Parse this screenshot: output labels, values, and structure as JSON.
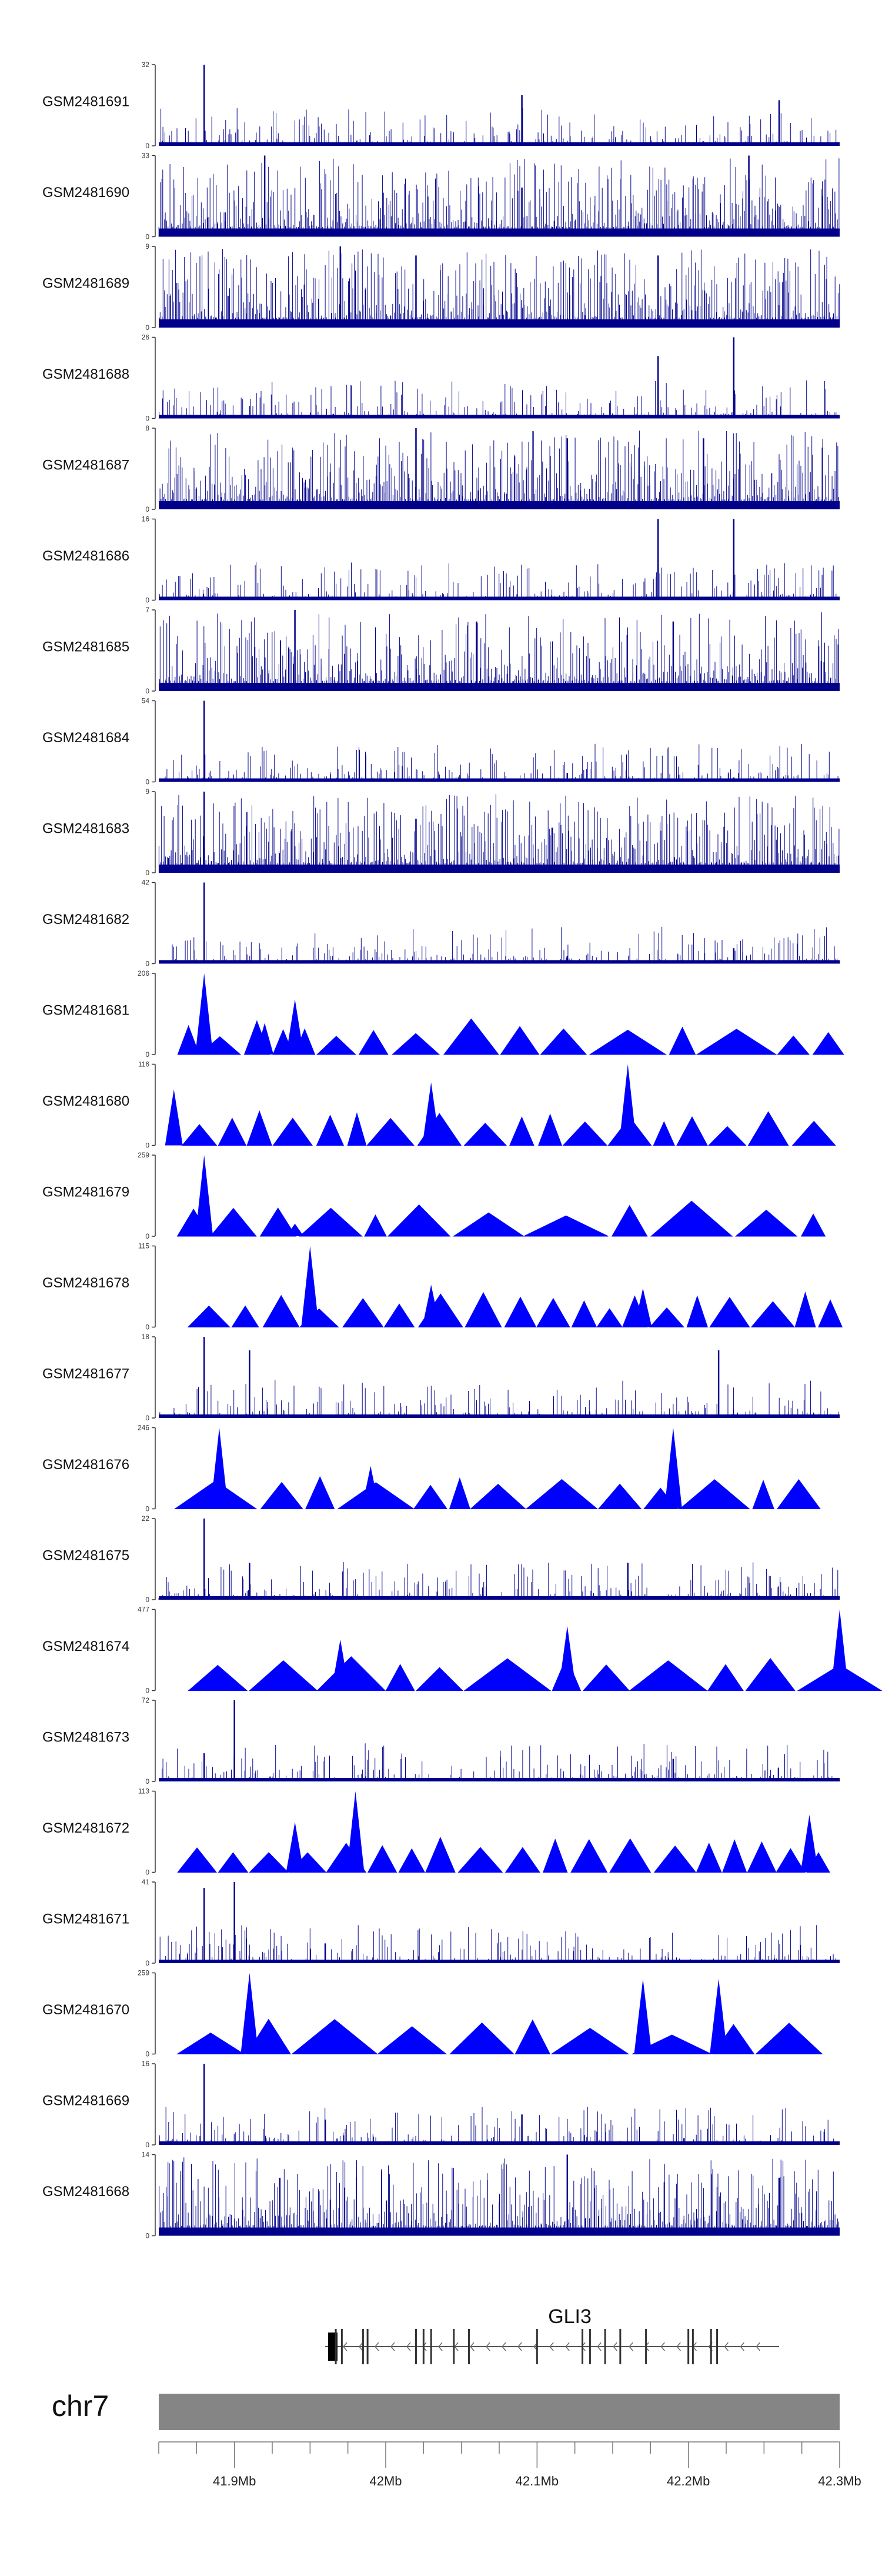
{
  "chart_data": {
    "type": "area",
    "title": "",
    "xlabel": "",
    "ylabel": "",
    "xlim": [
      41.85,
      42.3
    ],
    "x_unit": "Mb",
    "fill_color": "#0000ff",
    "line_color": "#00008b",
    "tracks": [
      {
        "name": "GSM2481691",
        "ymin": 0,
        "ymax": 32,
        "style": "bars",
        "peaks": [
          [
            41.88,
            32
          ],
          [
            42.09,
            20
          ],
          [
            42.26,
            18
          ]
        ]
      },
      {
        "name": "GSM2481690",
        "ymin": 0,
        "ymax": 33,
        "style": "bars",
        "peaks": [
          [
            41.92,
            33
          ],
          [
            42.24,
            33
          ],
          [
            42.09,
            20
          ]
        ]
      },
      {
        "name": "GSM2481689",
        "ymin": 0,
        "ymax": 9,
        "style": "bars",
        "peaks": [
          [
            41.97,
            9
          ],
          [
            42.02,
            8
          ],
          [
            42.18,
            8
          ]
        ]
      },
      {
        "name": "GSM2481688",
        "ymin": 0,
        "ymax": 26,
        "style": "bars",
        "peaks": [
          [
            42.23,
            26
          ],
          [
            42.18,
            20
          ],
          [
            42.18,
            12
          ]
        ]
      },
      {
        "name": "GSM2481687",
        "ymin": 0,
        "ymax": 8,
        "style": "bars",
        "peaks": [
          [
            42.02,
            8
          ],
          [
            42.12,
            7
          ],
          [
            42.21,
            7
          ]
        ]
      },
      {
        "name": "GSM2481686",
        "ymin": 0,
        "ymax": 16,
        "style": "bars",
        "peaks": [
          [
            42.18,
            16
          ],
          [
            42.23,
            16
          ],
          [
            42.18,
            8
          ]
        ]
      },
      {
        "name": "GSM2481685",
        "ymin": 0,
        "ymax": 7,
        "style": "bars",
        "peaks": [
          [
            41.94,
            7
          ],
          [
            42.06,
            6
          ],
          [
            42.19,
            6
          ]
        ]
      },
      {
        "name": "GSM2481684",
        "ymin": 0,
        "ymax": 54,
        "style": "bars",
        "peaks": [
          [
            41.88,
            54
          ],
          [
            42.12,
            6
          ],
          [
            42.23,
            3
          ]
        ]
      },
      {
        "name": "GSM2481683",
        "ymin": 0,
        "ymax": 9,
        "style": "bars",
        "peaks": [
          [
            41.88,
            9
          ],
          [
            42.02,
            6
          ],
          [
            42.11,
            5
          ]
        ]
      },
      {
        "name": "GSM2481682",
        "ymin": 0,
        "ymax": 42,
        "style": "bars",
        "peaks": [
          [
            41.88,
            42
          ],
          [
            42.23,
            8
          ],
          [
            42.12,
            4
          ]
        ]
      },
      {
        "name": "GSM2481681",
        "ymin": 0,
        "ymax": 206,
        "style": "tents",
        "peaks": [
          [
            41.88,
            206
          ],
          [
            41.94,
            140
          ],
          [
            41.92,
            80
          ]
        ]
      },
      {
        "name": "GSM2481680",
        "ymin": 0,
        "ymax": 116,
        "style": "tents",
        "peaks": [
          [
            42.16,
            116
          ],
          [
            41.86,
            80
          ],
          [
            42.03,
            90
          ]
        ]
      },
      {
        "name": "GSM2481679",
        "ymin": 0,
        "ymax": 259,
        "style": "tents",
        "peaks": [
          [
            41.88,
            259
          ],
          [
            41.94,
            40
          ],
          [
            42.01,
            30
          ]
        ]
      },
      {
        "name": "GSM2481678",
        "ymin": 0,
        "ymax": 115,
        "style": "tents",
        "peaks": [
          [
            41.95,
            115
          ],
          [
            42.03,
            60
          ],
          [
            42.17,
            55
          ]
        ]
      },
      {
        "name": "GSM2481677",
        "ymin": 0,
        "ymax": 18,
        "style": "bars",
        "peaks": [
          [
            41.88,
            18
          ],
          [
            41.91,
            15
          ],
          [
            42.22,
            15
          ]
        ]
      },
      {
        "name": "GSM2481676",
        "ymin": 0,
        "ymax": 246,
        "style": "tents",
        "peaks": [
          [
            41.89,
            246
          ],
          [
            42.19,
            246
          ],
          [
            41.99,
            130
          ]
        ]
      },
      {
        "name": "GSM2481675",
        "ymin": 0,
        "ymax": 22,
        "style": "bars",
        "peaks": [
          [
            41.88,
            22
          ],
          [
            41.91,
            10
          ],
          [
            42.16,
            10
          ]
        ]
      },
      {
        "name": "GSM2481674",
        "ymin": 0,
        "ymax": 477,
        "style": "tents",
        "peaks": [
          [
            42.3,
            477
          ],
          [
            42.12,
            380
          ],
          [
            41.97,
            300
          ]
        ]
      },
      {
        "name": "GSM2481673",
        "ymin": 0,
        "ymax": 72,
        "style": "bars",
        "peaks": [
          [
            41.9,
            72
          ],
          [
            41.88,
            25
          ],
          [
            42.19,
            20
          ]
        ]
      },
      {
        "name": "GSM2481672",
        "ymin": 0,
        "ymax": 113,
        "style": "tents",
        "peaks": [
          [
            41.98,
            113
          ],
          [
            41.94,
            70
          ],
          [
            42.28,
            80
          ]
        ]
      },
      {
        "name": "GSM2481671",
        "ymin": 0,
        "ymax": 41,
        "style": "bars",
        "peaks": [
          [
            41.9,
            41
          ],
          [
            41.88,
            38
          ],
          [
            41.96,
            10
          ]
        ]
      },
      {
        "name": "GSM2481670",
        "ymin": 0,
        "ymax": 259,
        "style": "tents",
        "peaks": [
          [
            41.91,
            259
          ],
          [
            42.22,
            240
          ],
          [
            42.17,
            240
          ]
        ]
      },
      {
        "name": "GSM2481669",
        "ymin": 0,
        "ymax": 16,
        "style": "bars",
        "peaks": [
          [
            41.88,
            16
          ],
          [
            42.09,
            6
          ],
          [
            41.96,
            5
          ]
        ]
      },
      {
        "name": "GSM2481668",
        "ymin": 0,
        "ymax": 14,
        "style": "bars",
        "peaks": [
          [
            42.12,
            14
          ],
          [
            41.93,
            10
          ],
          [
            42.26,
            10
          ]
        ]
      }
    ],
    "gene": {
      "name": "GLI3",
      "strand": "-",
      "start": 41.96,
      "end": 42.26,
      "thick_start": 41.965,
      "exons": [
        41.967,
        41.971,
        41.985,
        41.988,
        42.02,
        42.025,
        42.03,
        42.045,
        42.055,
        42.1,
        42.13,
        42.135,
        42.145,
        42.155,
        42.172,
        42.2,
        42.203,
        42.215,
        42.219
      ]
    },
    "chromosome": "chr7",
    "ticks": [
      41.9,
      42,
      42.1,
      42.2,
      42.3
    ],
    "tick_labels": [
      "41.9Mb",
      "42Mb",
      "42.1Mb",
      "42.2Mb",
      "42.3Mb"
    ]
  }
}
